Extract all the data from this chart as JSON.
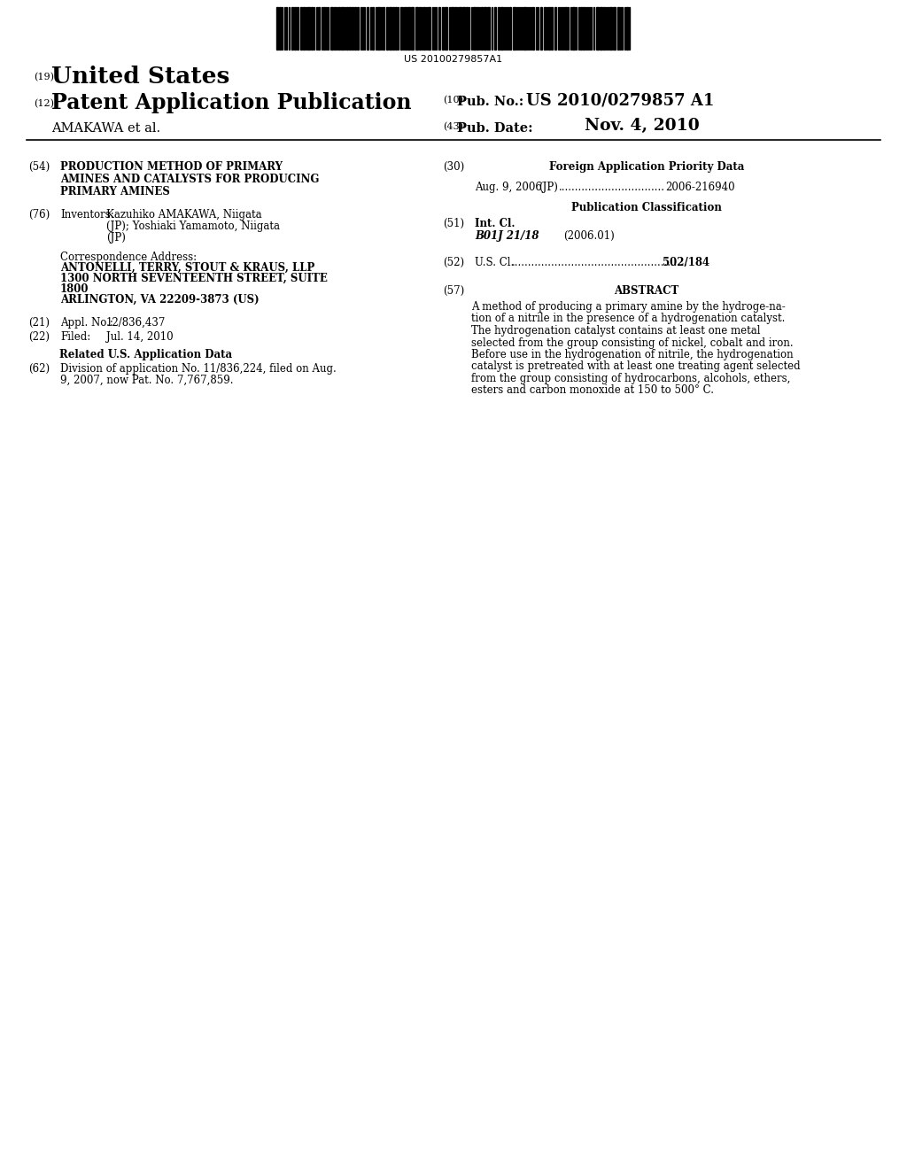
{
  "barcode_text": "US 20100279857A1",
  "patent_number": "US 2010/0279857 A1",
  "pub_date": "Nov. 4, 2010",
  "country": "United States",
  "pub_type": "Patent Application Publication",
  "applicant": "AMAKAWA et al.",
  "num_19": "(19)",
  "num_12": "(12)",
  "num_10": "(10)",
  "num_43": "(43)",
  "pub_no_label": "Pub. No.:",
  "pub_date_label": "Pub. Date:",
  "section54_num": "(54)",
  "section54_title_line1": "PRODUCTION METHOD OF PRIMARY",
  "section54_title_line2": "AMINES AND CATALYSTS FOR PRODUCING",
  "section54_title_line3": "PRIMARY AMINES",
  "section76_num": "(76)",
  "section76_label": "Inventors:",
  "section76_inventor1": "Kazuhiko AMAKAWA, Niigata",
  "section76_inventor1b": "(JP); Yoshiaki Yamamoto, Niigata",
  "section76_inventor1c": "(JP)",
  "corr_label": "Correspondence Address:",
  "corr_line1": "ANTONELLI, TERRY, STOUT & KRAUS, LLP",
  "corr_line2": "1300 NORTH SEVENTEENTH STREET, SUITE",
  "corr_line3": "1800",
  "corr_line4": "ARLINGTON, VA 22209-3873 (US)",
  "section21_num": "(21)",
  "section21_label": "Appl. No.:",
  "section21_value": "12/836,437",
  "section22_num": "(22)",
  "section22_label": "Filed:",
  "section22_value": "Jul. 14, 2010",
  "related_header": "Related U.S. Application Data",
  "section62_num": "(62)",
  "section62_line1": "Division of application No. 11/836,224, filed on Aug.",
  "section62_line2": "9, 2007, now Pat. No. 7,767,859.",
  "section30_num": "(30)",
  "section30_header": "Foreign Application Priority Data",
  "section30_entry_date": "Aug. 9, 2006",
  "section30_entry_country": "(JP)",
  "section30_entry_dots": "................................",
  "section30_entry_num": "2006-216940",
  "pub_class_header": "Publication Classification",
  "section51_num": "(51)",
  "section51_label": "Int. Cl.",
  "section51_class": "B01J 21/18",
  "section51_year": "(2006.01)",
  "section52_num": "(52)",
  "section52_label": "U.S. Cl.",
  "section52_dots": ".....................................................",
  "section52_value": "502/184",
  "section57_num": "(57)",
  "section57_header": "ABSTRACT",
  "abstract_line1": "A method of producing a primary amine by the hydroge­na-",
  "abstract_line2": "tion of a nitrile in the presence of a hydrogenation catalyst.",
  "abstract_line3": "The hydrogenation catalyst contains at least one metal",
  "abstract_line4": "selected from the group consisting of nickel, cobalt and iron.",
  "abstract_line5": "Before use in the hydrogenation of nitrile, the hydrogenation",
  "abstract_line6": "catalyst is pretreated with at least one treating agent selected",
  "abstract_line7": "from the group consisting of hydrocarbons, alcohols, ethers,",
  "abstract_line8": "esters and carbon monoxide at 150 to 500° C.",
  "bg_color": "#ffffff"
}
